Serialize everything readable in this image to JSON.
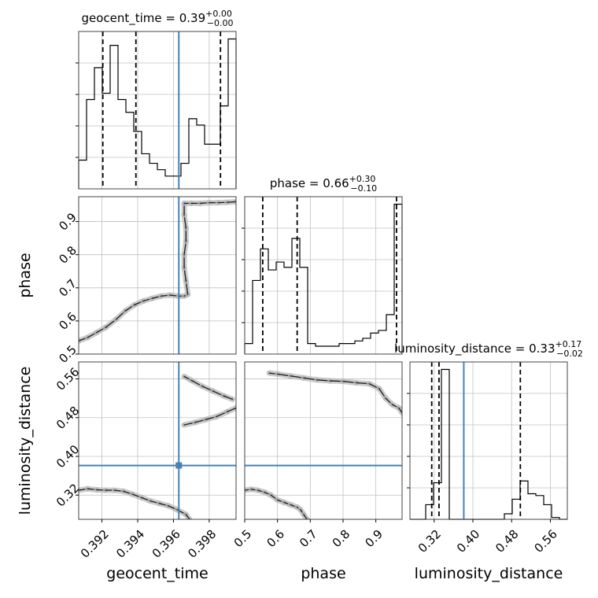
{
  "chart_data": {
    "type": "corner",
    "parameters": [
      "geocent_time",
      "phase",
      "luminosity_distance"
    ],
    "injection": {
      "geocent_time": 0.3963,
      "phase": null,
      "luminosity_distance": 0.3812
    },
    "marginals": [
      {
        "parameter": "geocent_time",
        "title_name": "geocent_time",
        "title_value": "0.39",
        "title_plus": "+0.00",
        "title_minus": "−0.00",
        "xlim": [
          0.3907,
          0.3995
        ],
        "quantile_lines": [
          0.39205,
          0.3939,
          0.39863
        ],
        "bin_edges": [
          0.3907,
          0.39114,
          0.39158,
          0.39202,
          0.39246,
          0.3929,
          0.39334,
          0.39378,
          0.39422,
          0.39466,
          0.3951,
          0.39554,
          0.39598,
          0.39642,
          0.39686,
          0.3973,
          0.39774,
          0.39818,
          0.39862,
          0.39906,
          0.3995
        ],
        "counts": [
          9,
          28,
          38,
          30,
          45,
          28,
          24,
          18,
          11,
          8,
          6,
          4,
          4,
          8,
          22,
          20,
          14,
          14,
          26,
          47
        ]
      },
      {
        "parameter": "phase",
        "title_name": "phase",
        "title_value": "0.66",
        "title_plus": "+0.30",
        "title_minus": "−0.10",
        "xlim": [
          0.5,
          0.98
        ],
        "quantile_lines": [
          0.555,
          0.66,
          0.963
        ],
        "bin_edges": [
          0.5,
          0.524,
          0.548,
          0.572,
          0.596,
          0.62,
          0.644,
          0.668,
          0.692,
          0.716,
          0.74,
          0.764,
          0.788,
          0.812,
          0.836,
          0.86,
          0.884,
          0.908,
          0.932,
          0.956,
          0.98
        ],
        "counts": [
          4,
          28,
          40,
          32,
          35,
          33,
          44,
          33,
          4,
          3,
          3,
          3,
          4,
          4,
          5,
          6,
          8,
          9,
          15,
          57
        ]
      },
      {
        "parameter": "luminosity_distance",
        "title_name": "luminosity_distance",
        "title_value": "0.33",
        "title_plus": "+0.17",
        "title_minus": "−0.02",
        "xlim": [
          0.27,
          0.595
        ],
        "quantile_lines": [
          0.315,
          0.33,
          0.498
        ],
        "bin_edges": [
          0.27,
          0.28625,
          0.3025,
          0.31875,
          0.335,
          0.35125,
          0.3675,
          0.38375,
          0.4,
          0.41625,
          0.4325,
          0.44875,
          0.465,
          0.48125,
          0.4975,
          0.51375,
          0.53,
          0.54625,
          0.5625,
          0.57875,
          0.595
        ],
        "counts": [
          0,
          0,
          8,
          20,
          82,
          0,
          0,
          0,
          0,
          0,
          0,
          0,
          3,
          11,
          21,
          14,
          13,
          8,
          1,
          0
        ]
      }
    ],
    "pairs": [
      {
        "x": "geocent_time",
        "y": "phase",
        "xlim": [
          0.3907,
          0.3995
        ],
        "ylim": [
          0.5,
          0.975
        ],
        "points": [
          [
            0.3907,
            0.54
          ],
          [
            0.3912,
            0.55
          ],
          [
            0.3917,
            0.565
          ],
          [
            0.3922,
            0.58
          ],
          [
            0.3928,
            0.605
          ],
          [
            0.3933,
            0.63
          ],
          [
            0.3938,
            0.648
          ],
          [
            0.3943,
            0.66
          ],
          [
            0.3948,
            0.668
          ],
          [
            0.3953,
            0.675
          ],
          [
            0.3958,
            0.678
          ],
          [
            0.3963,
            0.675
          ],
          [
            0.3966,
            0.675
          ],
          [
            0.3968,
            0.68
          ],
          [
            0.3967,
            0.72
          ],
          [
            0.3966,
            0.76
          ],
          [
            0.3966,
            0.8
          ],
          [
            0.3967,
            0.84
          ],
          [
            0.3967,
            0.88
          ],
          [
            0.3966,
            0.92
          ],
          [
            0.3966,
            0.955
          ],
          [
            0.397,
            0.955
          ],
          [
            0.3975,
            0.955
          ],
          [
            0.398,
            0.957
          ],
          [
            0.3985,
            0.957
          ],
          [
            0.399,
            0.958
          ],
          [
            0.3995,
            0.96
          ]
        ]
      },
      {
        "x": "geocent_time",
        "y": "luminosity_distance",
        "xlim": [
          0.3907,
          0.3995
        ],
        "ylim": [
          0.27,
          0.595
        ],
        "points": [
          [
            0.3907,
            0.33
          ],
          [
            0.3912,
            0.333
          ],
          [
            0.3917,
            0.331
          ],
          [
            0.3922,
            0.33
          ],
          [
            0.3927,
            0.33
          ],
          [
            0.3932,
            0.328
          ],
          [
            0.3937,
            0.322
          ],
          [
            0.3942,
            0.315
          ],
          [
            0.3947,
            0.308
          ],
          [
            0.3952,
            0.303
          ],
          [
            0.3957,
            0.298
          ],
          [
            0.3962,
            0.29
          ],
          [
            0.3967,
            0.28
          ],
          [
            0.3969,
            0.27
          ],
          [
            0.3966,
            0.465
          ],
          [
            0.3972,
            0.47
          ],
          [
            0.3978,
            0.476
          ],
          [
            0.3984,
            0.482
          ],
          [
            0.399,
            0.492
          ],
          [
            0.3995,
            0.5
          ],
          [
            0.3966,
            0.565
          ],
          [
            0.397,
            0.557
          ],
          [
            0.3976,
            0.545
          ],
          [
            0.3982,
            0.535
          ],
          [
            0.3988,
            0.525
          ],
          [
            0.3993,
            0.518
          ]
        ]
      },
      {
        "x": "phase",
        "y": "luminosity_distance",
        "xlim": [
          0.5,
          0.98
        ],
        "ylim": [
          0.27,
          0.595
        ],
        "points": [
          [
            0.575,
            0.572
          ],
          [
            0.6,
            0.57
          ],
          [
            0.64,
            0.566
          ],
          [
            0.68,
            0.562
          ],
          [
            0.72,
            0.558
          ],
          [
            0.76,
            0.556
          ],
          [
            0.8,
            0.555
          ],
          [
            0.84,
            0.552
          ],
          [
            0.88,
            0.55
          ],
          [
            0.91,
            0.54
          ],
          [
            0.93,
            0.52
          ],
          [
            0.95,
            0.507
          ],
          [
            0.97,
            0.5
          ],
          [
            0.98,
            0.49
          ],
          [
            0.5,
            0.33
          ],
          [
            0.52,
            0.332
          ],
          [
            0.54,
            0.33
          ],
          [
            0.56,
            0.326
          ],
          [
            0.58,
            0.32
          ],
          [
            0.6,
            0.31
          ],
          [
            0.62,
            0.305
          ],
          [
            0.64,
            0.3
          ],
          [
            0.66,
            0.295
          ],
          [
            0.67,
            0.29
          ],
          [
            0.68,
            0.28
          ],
          [
            0.69,
            0.27
          ]
        ]
      }
    ],
    "tick_values": {
      "geocent_time": [
        0.392,
        0.394,
        0.396,
        0.398
      ],
      "phase": [
        0.5,
        0.6,
        0.7,
        0.8,
        0.9
      ],
      "luminosity_distance": [
        0.32,
        0.4,
        0.48,
        0.56
      ]
    },
    "tick_labels": {
      "geocent_time": [
        "0.392",
        "0.394",
        "0.396",
        "0.398"
      ],
      "phase": [
        "0.5",
        "0.6",
        "0.7",
        "0.8",
        "0.9"
      ],
      "luminosity_distance": [
        "0.32",
        "0.40",
        "0.48",
        "0.56"
      ]
    },
    "axis_labels": {
      "geocent_time": "geocent_time",
      "phase": "phase",
      "luminosity_distance": "luminosity_distance"
    },
    "grid": true,
    "colors": {
      "injection": "#4682b4",
      "line": "#000000",
      "grid": "#c0c0c0",
      "scatter": "#666666"
    }
  }
}
